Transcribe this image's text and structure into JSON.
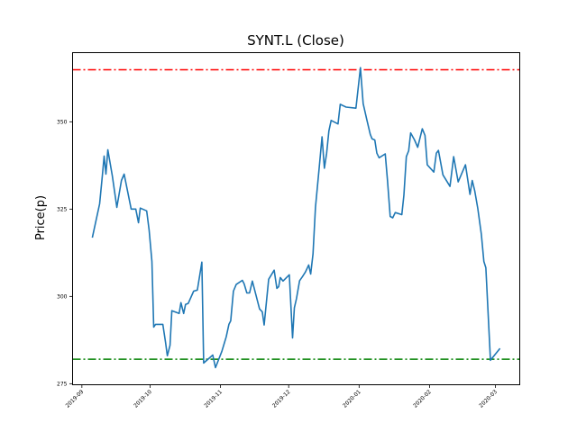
{
  "chart_data": {
    "type": "line",
    "title": "SYNT.L (Close)",
    "xlabel": "",
    "ylabel": "Price(p)",
    "x_unit": "days since 2019-09-01",
    "xlim": [
      -4.1,
      192.7
    ],
    "ylim": [
      274.7,
      369.8
    ],
    "grid": false,
    "x_ticks": [
      {
        "value": 0,
        "label": "2019-09"
      },
      {
        "value": 30,
        "label": "2019-10"
      },
      {
        "value": 61,
        "label": "2019-11"
      },
      {
        "value": 91,
        "label": "2019-12"
      },
      {
        "value": 122,
        "label": "2020-01"
      },
      {
        "value": 153,
        "label": "2020-02"
      },
      {
        "value": 182,
        "label": "2020-03"
      }
    ],
    "y_ticks": [
      {
        "value": 275,
        "label": "275"
      },
      {
        "value": 300,
        "label": "300"
      },
      {
        "value": 325,
        "label": "325"
      },
      {
        "value": 350,
        "label": "350"
      }
    ],
    "hlines": [
      {
        "name": "max-line",
        "value": 364.9,
        "color": "#ff0000",
        "style": "dashdot"
      },
      {
        "name": "min-line",
        "value": 282.0,
        "color": "#008000",
        "style": "dashdot"
      }
    ],
    "series": [
      {
        "name": "Close",
        "color": "#1f77b4",
        "x": [
          4.6,
          7.8,
          9,
          9.8,
          10.6,
          11.4,
          13.4,
          15.4,
          17.4,
          18.6,
          21.7,
          23.7,
          24.9,
          25.7,
          28.5,
          29.6,
          30.8,
          31.6,
          32.4,
          35.6,
          36.8,
          37.6,
          38.8,
          39.6,
          42.8,
          43.6,
          44.8,
          45.6,
          46.8,
          49.2,
          50.8,
          52.8,
          53.6,
          57.6,
          58.8,
          61.6,
          63.5,
          64.7,
          65.5,
          66.7,
          67.9,
          70.6,
          71.4,
          72.6,
          73.8,
          75,
          78.2,
          79.4,
          80.2,
          81.4,
          82.2,
          84.6,
          85.8,
          86.6,
          87.3,
          88.5,
          91.3,
          92.7,
          93.5,
          94.4,
          95.8,
          97.1,
          98.4,
          99.8,
          100.7,
          101.7,
          102.8,
          104.4,
          105.7,
          106.7,
          107.7,
          108.7,
          109.7,
          112.7,
          113.7,
          116.3,
          120.6,
          122.6,
          123.8,
          125.3,
          126.9,
          127.7,
          128.9,
          129.8,
          130.8,
          133.5,
          134.5,
          135.7,
          136.8,
          137.9,
          140.8,
          141.7,
          142.8,
          143.8,
          144.7,
          146.4,
          147.8,
          149.8,
          151,
          152,
          154.9,
          156,
          156.9,
          158.9,
          162,
          163.6,
          165.6,
          168.8,
          170.8,
          171.8,
          172.9,
          174.2,
          175.8,
          176.9,
          177.8,
          179.8,
          184
        ],
        "y": [
          316.8,
          326.5,
          334.5,
          340.2,
          335,
          342,
          334.5,
          325.5,
          333.2,
          335,
          325,
          325,
          321.1,
          325.3,
          324.5,
          319,
          310,
          291.2,
          292,
          292,
          286.9,
          283,
          286,
          295.9,
          295.1,
          298.2,
          295.1,
          297.7,
          298,
          301.5,
          301.8,
          309.8,
          280.9,
          283.2,
          279.6,
          284.3,
          288.4,
          292,
          293,
          301.5,
          303.4,
          304.6,
          303.6,
          301,
          301,
          304.4,
          296.4,
          295.6,
          291.8,
          299.7,
          304.9,
          307.5,
          302.3,
          302.8,
          305.4,
          304.4,
          306.2,
          288.1,
          296.7,
          299.3,
          304.5,
          305.7,
          307,
          309,
          306.4,
          312.2,
          325.5,
          336.7,
          345.7,
          336.7,
          341,
          347.4,
          350.4,
          349.4,
          355,
          354.2,
          353.9,
          365.5,
          355.2,
          350.9,
          346.4,
          345.1,
          344.8,
          341,
          339.7,
          340.8,
          333.2,
          322.9,
          322.5,
          324,
          323.4,
          329,
          340,
          341.7,
          346.8,
          344.8,
          342.7,
          348,
          346.1,
          337.7,
          335.6,
          341,
          341.8,
          334.8,
          331.5,
          340,
          332.8,
          337.7,
          329.2,
          333.2,
          330.2,
          325.3,
          317.8,
          310,
          308.2,
          281.7,
          285.1
        ]
      }
    ]
  }
}
